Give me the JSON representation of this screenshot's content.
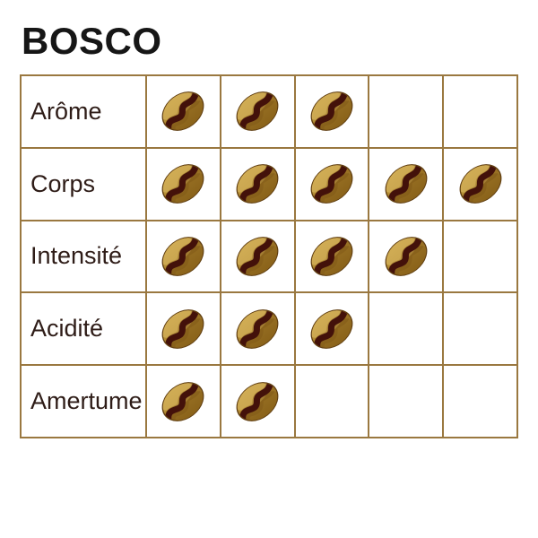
{
  "title": "BOSCO",
  "colors": {
    "bg": "#ffffff",
    "title": "#161616",
    "label": "#2e1c17",
    "grid": "#9a7840",
    "bean_rim": "#5f3d10",
    "bean_light": "#c79f42",
    "bean_dark": "#9a7120",
    "bean_highlight": "#d4b25c",
    "bean_shadow": "#7e5716",
    "bean_crease": "#43110a"
  },
  "table": {
    "max_score": 5,
    "rows": [
      {
        "label": "Arôme",
        "score": 3
      },
      {
        "label": "Corps",
        "score": 5
      },
      {
        "label": "Intensité",
        "score": 4
      },
      {
        "label": "Acidité",
        "score": 3
      },
      {
        "label": "Amertume",
        "score": 2
      }
    ]
  },
  "chart_data": {
    "type": "table",
    "title": "BOSCO",
    "categories": [
      "Arôme",
      "Corps",
      "Intensité",
      "Acidité",
      "Amertume"
    ],
    "values": [
      3,
      5,
      4,
      3,
      2
    ],
    "value_range": [
      0,
      5
    ],
    "unit": "coffee beans",
    "legend_position": "none",
    "grid": true
  }
}
